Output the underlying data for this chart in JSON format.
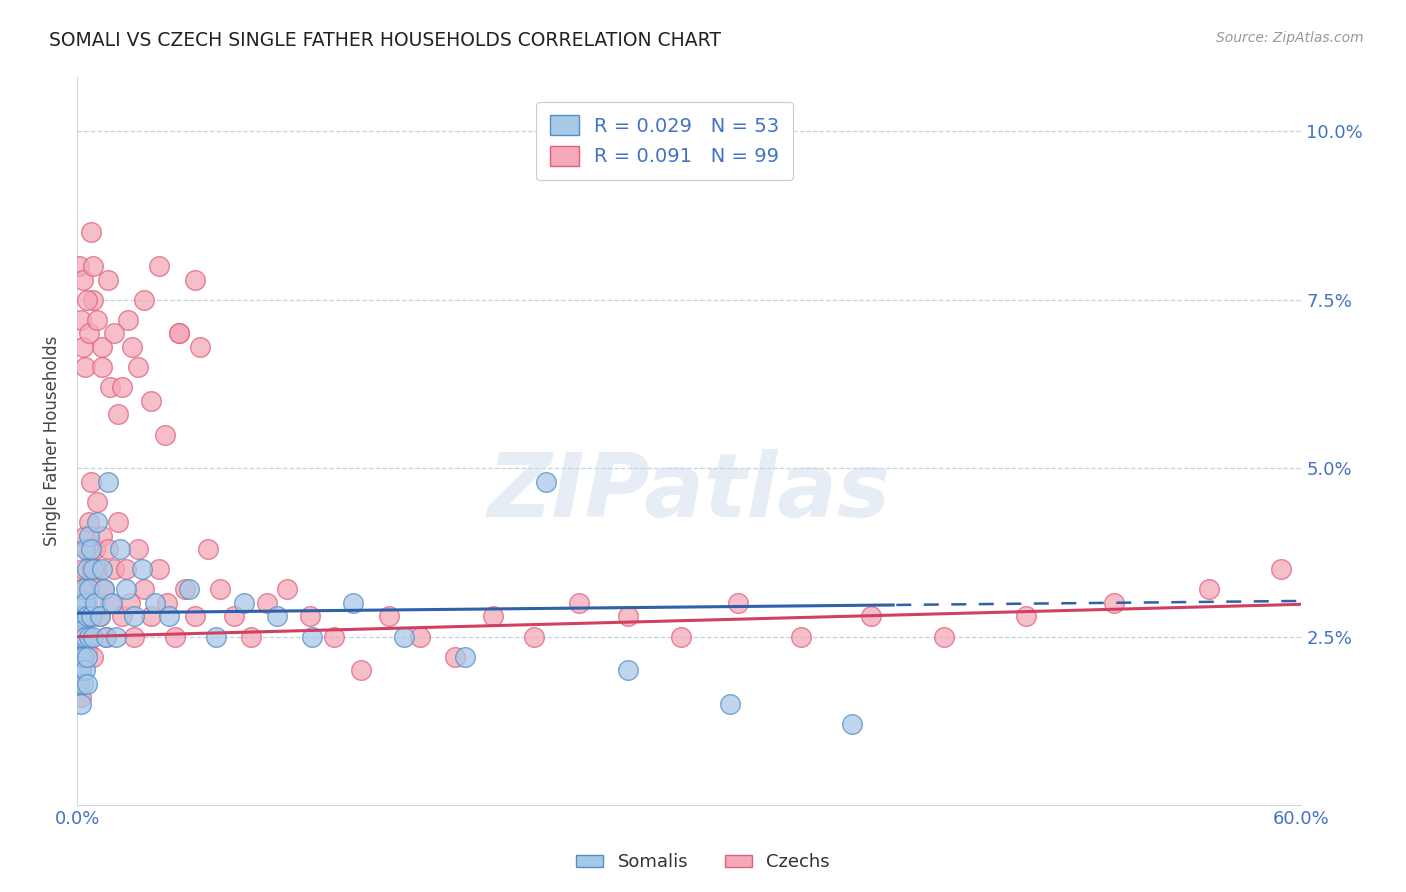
{
  "title": "SOMALI VS CZECH SINGLE FATHER HOUSEHOLDS CORRELATION CHART",
  "source": "Source: ZipAtlas.com",
  "ylabel_label": "Single Father Households",
  "xmin": 0.0,
  "xmax": 0.6,
  "ymin": 0.0,
  "ymax": 0.108,
  "somali_R": 0.029,
  "somali_N": 53,
  "czech_R": 0.091,
  "czech_N": 99,
  "somali_color": "#a8c8e8",
  "czech_color": "#f4a8b8",
  "somali_edge_color": "#5090c8",
  "czech_edge_color": "#e06080",
  "somali_line_color": "#3060a8",
  "czech_line_color": "#d04060",
  "watermark": "ZIPatlas",
  "somali_x": [
    0.001,
    0.001,
    0.001,
    0.002,
    0.002,
    0.002,
    0.002,
    0.003,
    0.003,
    0.003,
    0.003,
    0.004,
    0.004,
    0.004,
    0.004,
    0.005,
    0.005,
    0.005,
    0.005,
    0.006,
    0.006,
    0.006,
    0.007,
    0.007,
    0.008,
    0.008,
    0.009,
    0.01,
    0.011,
    0.012,
    0.013,
    0.014,
    0.015,
    0.017,
    0.019,
    0.021,
    0.024,
    0.028,
    0.032,
    0.038,
    0.045,
    0.055,
    0.068,
    0.082,
    0.098,
    0.115,
    0.135,
    0.16,
    0.19,
    0.23,
    0.27,
    0.32,
    0.38
  ],
  "somali_y": [
    0.03,
    0.022,
    0.018,
    0.028,
    0.025,
    0.02,
    0.015,
    0.032,
    0.026,
    0.022,
    0.018,
    0.038,
    0.03,
    0.025,
    0.02,
    0.035,
    0.028,
    0.022,
    0.018,
    0.04,
    0.032,
    0.025,
    0.038,
    0.028,
    0.035,
    0.025,
    0.03,
    0.042,
    0.028,
    0.035,
    0.032,
    0.025,
    0.048,
    0.03,
    0.025,
    0.038,
    0.032,
    0.028,
    0.035,
    0.03,
    0.028,
    0.032,
    0.025,
    0.03,
    0.028,
    0.025,
    0.03,
    0.025,
    0.022,
    0.048,
    0.02,
    0.015,
    0.012
  ],
  "czech_x": [
    0.001,
    0.001,
    0.001,
    0.002,
    0.002,
    0.002,
    0.002,
    0.003,
    0.003,
    0.003,
    0.004,
    0.004,
    0.004,
    0.005,
    0.005,
    0.005,
    0.006,
    0.006,
    0.007,
    0.007,
    0.008,
    0.008,
    0.009,
    0.01,
    0.01,
    0.011,
    0.012,
    0.013,
    0.014,
    0.015,
    0.016,
    0.018,
    0.02,
    0.022,
    0.024,
    0.026,
    0.028,
    0.03,
    0.033,
    0.036,
    0.04,
    0.044,
    0.048,
    0.053,
    0.058,
    0.064,
    0.07,
    0.077,
    0.085,
    0.093,
    0.103,
    0.114,
    0.126,
    0.139,
    0.153,
    0.168,
    0.185,
    0.204,
    0.224,
    0.246,
    0.27,
    0.296,
    0.324,
    0.355,
    0.389,
    0.425,
    0.465,
    0.508,
    0.555,
    0.59,
    0.008,
    0.012,
    0.016,
    0.02,
    0.025,
    0.03,
    0.036,
    0.043,
    0.05,
    0.058,
    0.001,
    0.002,
    0.003,
    0.003,
    0.004,
    0.005,
    0.006,
    0.007,
    0.008,
    0.01,
    0.012,
    0.015,
    0.018,
    0.022,
    0.027,
    0.033,
    0.04,
    0.05,
    0.06
  ],
  "czech_y": [
    0.028,
    0.022,
    0.018,
    0.032,
    0.025,
    0.02,
    0.016,
    0.035,
    0.028,
    0.022,
    0.04,
    0.032,
    0.025,
    0.038,
    0.03,
    0.023,
    0.042,
    0.033,
    0.048,
    0.035,
    0.028,
    0.022,
    0.038,
    0.045,
    0.035,
    0.028,
    0.04,
    0.032,
    0.025,
    0.038,
    0.03,
    0.035,
    0.042,
    0.028,
    0.035,
    0.03,
    0.025,
    0.038,
    0.032,
    0.028,
    0.035,
    0.03,
    0.025,
    0.032,
    0.028,
    0.038,
    0.032,
    0.028,
    0.025,
    0.03,
    0.032,
    0.028,
    0.025,
    0.02,
    0.028,
    0.025,
    0.022,
    0.028,
    0.025,
    0.03,
    0.028,
    0.025,
    0.03,
    0.025,
    0.028,
    0.025,
    0.028,
    0.03,
    0.032,
    0.035,
    0.075,
    0.068,
    0.062,
    0.058,
    0.072,
    0.065,
    0.06,
    0.055,
    0.07,
    0.078,
    0.08,
    0.072,
    0.078,
    0.068,
    0.065,
    0.075,
    0.07,
    0.085,
    0.08,
    0.072,
    0.065,
    0.078,
    0.07,
    0.062,
    0.068,
    0.075,
    0.08,
    0.07,
    0.068
  ],
  "somali_line_slope": 0.003,
  "somali_line_intercept": 0.0285,
  "czech_line_slope": 0.008,
  "czech_line_intercept": 0.025,
  "solid_cutoff": 0.4
}
